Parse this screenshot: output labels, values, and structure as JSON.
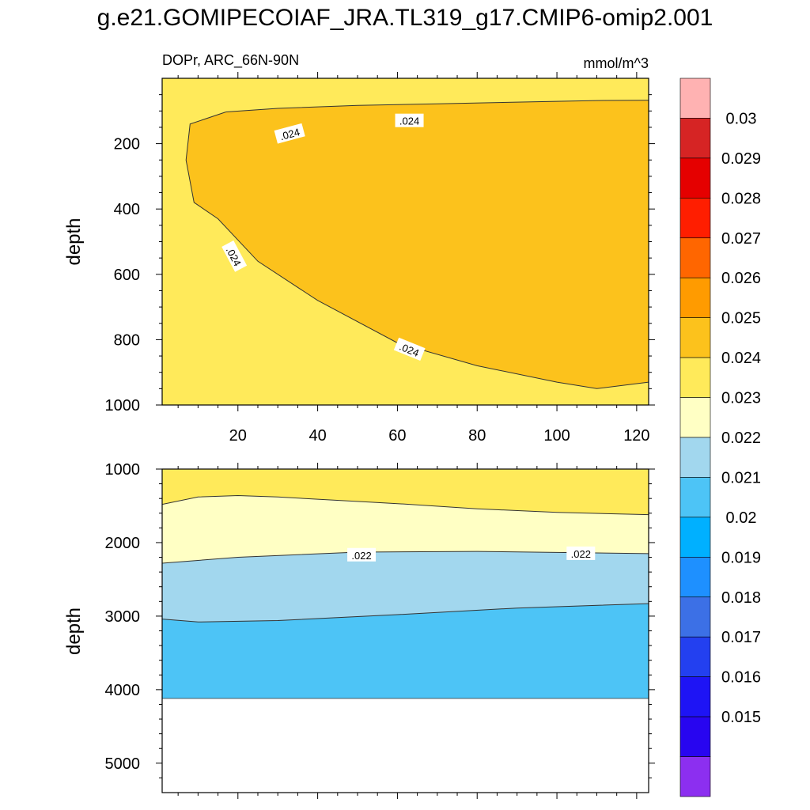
{
  "title": "g.e21.GOMIPECOIAF_JRA.TL319_g17.CMIP6-omip2.001",
  "chart_data": [
    {
      "type": "contour",
      "panel": "upper",
      "left_label": "DOPr, ARC_66N-90N",
      "right_label": "mmol/m^3",
      "ylabel": "depth",
      "xlim": [
        1,
        123
      ],
      "ylim": [
        1000,
        0
      ],
      "x_ticks": [
        "20",
        "40",
        "60",
        "80",
        "100",
        "120"
      ],
      "y_ticks": [
        "200",
        "400",
        "600",
        "800",
        "1000"
      ],
      "region_values": {
        "background": 0.0235,
        "core": 0.0245
      },
      "contour_024_top": [
        [
          17,
          103
        ],
        [
          30,
          92
        ],
        [
          50,
          83
        ],
        [
          70,
          78
        ],
        [
          90,
          73
        ],
        [
          110,
          68
        ],
        [
          123,
          67
        ]
      ],
      "contour_024_bottom": [
        [
          17,
          103
        ],
        [
          8,
          140
        ],
        [
          7,
          250
        ],
        [
          9,
          380
        ],
        [
          15,
          430
        ],
        [
          25,
          560
        ],
        [
          40,
          680
        ],
        [
          60,
          810
        ],
        [
          80,
          880
        ],
        [
          100,
          930
        ],
        [
          110,
          950
        ],
        [
          123,
          930
        ]
      ],
      "contour_labels": [
        {
          "text": ".024",
          "x": 33,
          "y": 170,
          "angle": -15
        },
        {
          "text": ".024",
          "x": 63,
          "y": 130,
          "angle": 0
        },
        {
          "text": ".024",
          "x": 19,
          "y": 545,
          "angle": 62
        },
        {
          "text": ".024",
          "x": 63,
          "y": 830,
          "angle": 22
        }
      ]
    },
    {
      "type": "contour",
      "panel": "lower",
      "ylabel": "depth",
      "xlim": [
        1,
        123
      ],
      "ylim": [
        5400,
        1000
      ],
      "y_ticks": [
        "1000",
        "2000",
        "3000",
        "4000",
        "5000"
      ],
      "bottom_depth": 4120,
      "boundaries": [
        {
          "level": 0.023,
          "points": [
            [
              1,
              1480
            ],
            [
              10,
              1380
            ],
            [
              20,
              1360
            ],
            [
              30,
              1380
            ],
            [
              60,
              1470
            ],
            [
              80,
              1540
            ],
            [
              100,
              1590
            ],
            [
              123,
              1620
            ]
          ]
        },
        {
          "level": 0.022,
          "points": [
            [
              1,
              2280
            ],
            [
              20,
              2200
            ],
            [
              50,
              2130
            ],
            [
              80,
              2120
            ],
            [
              123,
              2150
            ]
          ]
        },
        {
          "level": 0.021,
          "points": [
            [
              1,
              3040
            ],
            [
              10,
              3080
            ],
            [
              30,
              3060
            ],
            [
              60,
              2980
            ],
            [
              90,
              2890
            ],
            [
              123,
              2830
            ]
          ]
        }
      ],
      "bands": [
        {
          "range": [
            0.023,
            0.024
          ],
          "top": 1000,
          "bottom_boundary": 0
        },
        {
          "range": [
            0.022,
            0.023
          ],
          "top_boundary": 0,
          "bottom_boundary": 1
        },
        {
          "range": [
            0.021,
            0.022
          ],
          "top_boundary": 1,
          "bottom_boundary": 2
        },
        {
          "range": [
            0.02,
            0.021
          ],
          "top_boundary": 2,
          "bottom": 4120
        }
      ],
      "contour_labels": [
        {
          "text": ".022",
          "x": 51,
          "y": 2170
        },
        {
          "text": ".022",
          "x": 106,
          "y": 2150
        }
      ]
    }
  ],
  "colorbar": {
    "labels": [
      "0.03",
      "0.029",
      "0.028",
      "0.027",
      "0.026",
      "0.025",
      "0.024",
      "0.023",
      "0.022",
      "0.021",
      "0.02",
      "0.019",
      "0.018",
      "0.017",
      "0.016",
      "0.015"
    ],
    "colors": [
      "#ffb2b2",
      "#d62424",
      "#e50000",
      "#ff1e00",
      "#ff6600",
      "#ff9b00",
      "#fcc21c",
      "#ffea5a",
      "#ffffc4",
      "#a2d7ee",
      "#4dc4f6",
      "#00b0ff",
      "#1e90ff",
      "#3c70e6",
      "#2340f0",
      "#1e14f5",
      "#2805f0",
      "#8c2ff0"
    ]
  }
}
